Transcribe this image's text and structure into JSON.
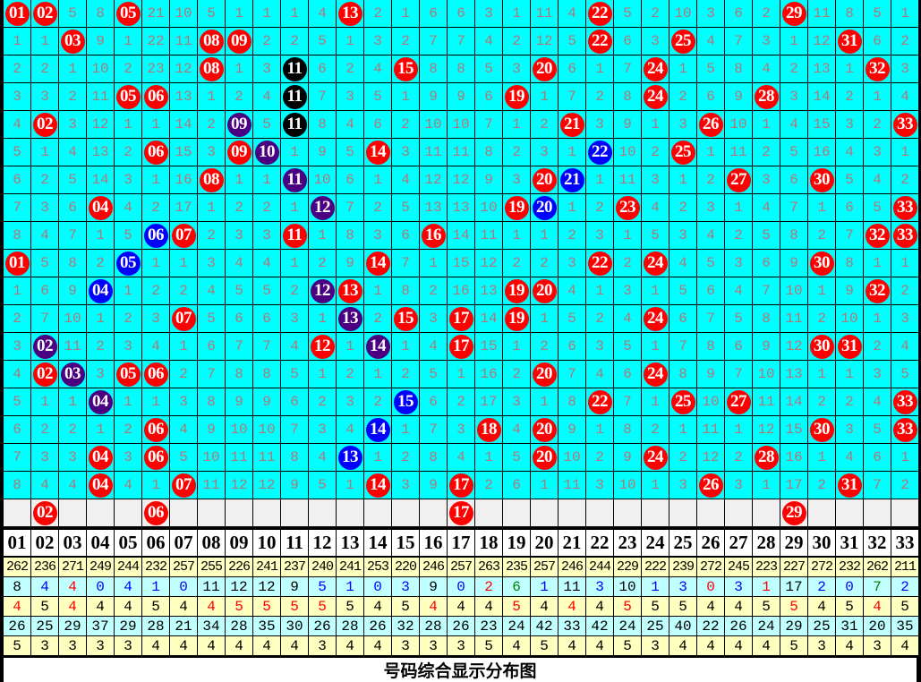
{
  "title": "号码综合显示分布图",
  "palette": {
    "r": "#ff0000",
    "b": "#0000ff",
    "p": "#4b0082",
    "k": "#000000",
    "g": "#008000"
  },
  "colors": {
    "cell_bg": "#00ffff",
    "cell_text": "#b07878",
    "blank_row_bg": "#f0f0f0",
    "stat_yellow": "#ffffc0",
    "stat_cyan": "#c0ffff"
  },
  "chart_data": {
    "type": "table",
    "columns": [
      "01",
      "02",
      "03",
      "04",
      "05",
      "06",
      "07",
      "08",
      "09",
      "10",
      "11",
      "12",
      "13",
      "14",
      "15",
      "16",
      "17",
      "18",
      "19",
      "20",
      "21",
      "22",
      "23",
      "24",
      "25",
      "26",
      "27",
      "28",
      "29",
      "30",
      "31",
      "32",
      "33"
    ],
    "rows": [
      {
        "cells": [
          "01",
          "02",
          "5",
          "8",
          "05",
          "21",
          "10",
          "5",
          "1",
          "1",
          "1",
          "4",
          "13",
          "2",
          "1",
          "6",
          "6",
          "3",
          "1",
          "11",
          "4",
          "22",
          "5",
          "2",
          "10",
          "3",
          "6",
          "2",
          "29",
          "11",
          "8",
          "5",
          "1"
        ],
        "balls": {
          "0": "r",
          "1": "r",
          "4": "r",
          "12": "r",
          "21": "r",
          "28": "r"
        }
      },
      {
        "cells": [
          "1",
          "1",
          "03",
          "9",
          "1",
          "22",
          "11",
          "08",
          "09",
          "2",
          "2",
          "5",
          "1",
          "3",
          "2",
          "7",
          "7",
          "4",
          "2",
          "12",
          "5",
          "22",
          "6",
          "3",
          "25",
          "4",
          "7",
          "3",
          "1",
          "12",
          "31",
          "6",
          "2"
        ],
        "balls": {
          "2": "r",
          "7": "r",
          "8": "r",
          "21": "r",
          "24": "r",
          "30": "r"
        }
      },
      {
        "cells": [
          "2",
          "2",
          "1",
          "10",
          "2",
          "23",
          "12",
          "08",
          "1",
          "3",
          "11",
          "6",
          "2",
          "4",
          "15",
          "8",
          "8",
          "5",
          "3",
          "20",
          "6",
          "1",
          "7",
          "24",
          "1",
          "5",
          "8",
          "4",
          "2",
          "13",
          "1",
          "32",
          "3"
        ],
        "balls": {
          "7": "r",
          "10": "k",
          "14": "r",
          "19": "r",
          "23": "r",
          "31": "r"
        }
      },
      {
        "cells": [
          "3",
          "3",
          "2",
          "11",
          "05",
          "06",
          "13",
          "1",
          "2",
          "4",
          "11",
          "7",
          "3",
          "5",
          "1",
          "9",
          "9",
          "6",
          "19",
          "1",
          "7",
          "2",
          "8",
          "24",
          "2",
          "6",
          "9",
          "28",
          "3",
          "14",
          "2",
          "1",
          "4"
        ],
        "balls": {
          "4": "r",
          "5": "r",
          "10": "k",
          "18": "r",
          "23": "r",
          "27": "r"
        }
      },
      {
        "cells": [
          "4",
          "02",
          "3",
          "12",
          "1",
          "1",
          "14",
          "2",
          "09",
          "5",
          "11",
          "8",
          "4",
          "6",
          "2",
          "10",
          "10",
          "7",
          "1",
          "2",
          "21",
          "3",
          "9",
          "1",
          "3",
          "26",
          "10",
          "1",
          "4",
          "15",
          "3",
          "2",
          "33"
        ],
        "balls": {
          "1": "r",
          "8": "p",
          "10": "k",
          "20": "r",
          "25": "r",
          "32": "r"
        }
      },
      {
        "cells": [
          "5",
          "1",
          "4",
          "13",
          "2",
          "06",
          "15",
          "3",
          "09",
          "10",
          "1",
          "9",
          "5",
          "14",
          "3",
          "11",
          "11",
          "8",
          "2",
          "3",
          "1",
          "22",
          "10",
          "2",
          "25",
          "1",
          "11",
          "2",
          "5",
          "16",
          "4",
          "3",
          "1"
        ],
        "balls": {
          "5": "r",
          "8": "r",
          "9": "p",
          "13": "r",
          "21": "b",
          "24": "r"
        }
      },
      {
        "cells": [
          "6",
          "2",
          "5",
          "14",
          "3",
          "1",
          "16",
          "08",
          "1",
          "1",
          "11",
          "10",
          "6",
          "1",
          "4",
          "12",
          "12",
          "9",
          "3",
          "20",
          "21",
          "1",
          "11",
          "3",
          "1",
          "2",
          "27",
          "3",
          "6",
          "30",
          "5",
          "4",
          "2"
        ],
        "balls": {
          "7": "r",
          "10": "p",
          "19": "r",
          "20": "b",
          "26": "r",
          "29": "r"
        }
      },
      {
        "cells": [
          "7",
          "3",
          "6",
          "04",
          "4",
          "2",
          "17",
          "1",
          "2",
          "2",
          "1",
          "12",
          "7",
          "2",
          "5",
          "13",
          "13",
          "10",
          "19",
          "20",
          "1",
          "2",
          "23",
          "4",
          "2",
          "3",
          "1",
          "4",
          "7",
          "1",
          "6",
          "5",
          "33"
        ],
        "balls": {
          "3": "r",
          "11": "p",
          "18": "r",
          "19": "b",
          "22": "r",
          "32": "r"
        }
      },
      {
        "cells": [
          "8",
          "4",
          "7",
          "1",
          "5",
          "06",
          "07",
          "2",
          "3",
          "3",
          "11",
          "1",
          "8",
          "3",
          "6",
          "16",
          "14",
          "11",
          "1",
          "1",
          "2",
          "3",
          "1",
          "5",
          "3",
          "4",
          "2",
          "5",
          "8",
          "2",
          "7",
          "32",
          "33"
        ],
        "balls": {
          "5": "b",
          "6": "r",
          "10": "r",
          "15": "r",
          "31": "r",
          "32": "r"
        }
      },
      {
        "cells": [
          "01",
          "5",
          "8",
          "2",
          "05",
          "1",
          "1",
          "3",
          "4",
          "4",
          "1",
          "2",
          "9",
          "14",
          "7",
          "1",
          "15",
          "12",
          "2",
          "2",
          "3",
          "22",
          "2",
          "24",
          "4",
          "5",
          "3",
          "6",
          "9",
          "30",
          "8",
          "1",
          "1"
        ],
        "balls": {
          "0": "r",
          "4": "b",
          "13": "r",
          "21": "r",
          "23": "r",
          "29": "r"
        }
      },
      {
        "cells": [
          "1",
          "6",
          "9",
          "04",
          "1",
          "2",
          "2",
          "4",
          "5",
          "5",
          "2",
          "12",
          "13",
          "1",
          "8",
          "2",
          "16",
          "13",
          "19",
          "20",
          "4",
          "1",
          "3",
          "1",
          "5",
          "6",
          "4",
          "7",
          "10",
          "1",
          "9",
          "32",
          "2"
        ],
        "balls": {
          "3": "b",
          "11": "p",
          "12": "r",
          "18": "r",
          "19": "r",
          "31": "r"
        }
      },
      {
        "cells": [
          "2",
          "7",
          "10",
          "1",
          "2",
          "3",
          "07",
          "5",
          "6",
          "6",
          "3",
          "1",
          "13",
          "2",
          "15",
          "3",
          "17",
          "14",
          "19",
          "1",
          "5",
          "2",
          "4",
          "24",
          "6",
          "7",
          "5",
          "8",
          "11",
          "2",
          "10",
          "1",
          "3"
        ],
        "balls": {
          "6": "r",
          "12": "p",
          "14": "r",
          "16": "r",
          "18": "r",
          "23": "r"
        }
      },
      {
        "cells": [
          "3",
          "02",
          "11",
          "2",
          "3",
          "4",
          "1",
          "6",
          "7",
          "7",
          "4",
          "12",
          "1",
          "14",
          "1",
          "4",
          "17",
          "15",
          "1",
          "2",
          "6",
          "3",
          "5",
          "1",
          "7",
          "8",
          "6",
          "9",
          "12",
          "30",
          "31",
          "2",
          "4"
        ],
        "balls": {
          "1": "p",
          "11": "r",
          "13": "p",
          "16": "r",
          "29": "r",
          "30": "r"
        }
      },
      {
        "cells": [
          "4",
          "02",
          "03",
          "3",
          "05",
          "06",
          "2",
          "7",
          "8",
          "8",
          "5",
          "1",
          "2",
          "1",
          "2",
          "5",
          "1",
          "16",
          "2",
          "20",
          "7",
          "4",
          "6",
          "24",
          "8",
          "9",
          "7",
          "10",
          "13",
          "1",
          "1",
          "3",
          "5"
        ],
        "balls": {
          "1": "r",
          "2": "p",
          "4": "r",
          "5": "r",
          "19": "r",
          "23": "r"
        }
      },
      {
        "cells": [
          "5",
          "1",
          "1",
          "04",
          "1",
          "1",
          "3",
          "8",
          "9",
          "9",
          "6",
          "2",
          "3",
          "2",
          "15",
          "6",
          "2",
          "17",
          "3",
          "1",
          "8",
          "22",
          "7",
          "1",
          "25",
          "10",
          "27",
          "11",
          "14",
          "2",
          "2",
          "4",
          "33"
        ],
        "balls": {
          "3": "p",
          "14": "b",
          "21": "r",
          "24": "r",
          "26": "r",
          "32": "r"
        }
      },
      {
        "cells": [
          "6",
          "2",
          "2",
          "1",
          "2",
          "06",
          "4",
          "9",
          "10",
          "10",
          "7",
          "3",
          "4",
          "14",
          "1",
          "7",
          "3",
          "18",
          "4",
          "20",
          "9",
          "1",
          "8",
          "2",
          "1",
          "11",
          "1",
          "12",
          "15",
          "30",
          "3",
          "5",
          "33"
        ],
        "balls": {
          "5": "r",
          "13": "b",
          "17": "r",
          "19": "r",
          "29": "r",
          "32": "r"
        }
      },
      {
        "cells": [
          "7",
          "3",
          "3",
          "04",
          "3",
          "06",
          "5",
          "10",
          "11",
          "11",
          "8",
          "4",
          "13",
          "1",
          "2",
          "8",
          "4",
          "1",
          "5",
          "20",
          "10",
          "2",
          "9",
          "24",
          "2",
          "12",
          "2",
          "28",
          "16",
          "1",
          "4",
          "6",
          "1"
        ],
        "balls": {
          "3": "r",
          "5": "r",
          "12": "b",
          "19": "r",
          "23": "r",
          "27": "r"
        }
      },
      {
        "cells": [
          "8",
          "4",
          "4",
          "04",
          "4",
          "1",
          "07",
          "11",
          "12",
          "12",
          "9",
          "5",
          "1",
          "14",
          "3",
          "9",
          "17",
          "2",
          "6",
          "1",
          "11",
          "3",
          "10",
          "1",
          "3",
          "26",
          "3",
          "1",
          "17",
          "2",
          "31",
          "7",
          "2"
        ],
        "balls": {
          "3": "r",
          "6": "r",
          "13": "r",
          "16": "r",
          "25": "r",
          "30": "r"
        }
      },
      {
        "blank": true,
        "cells": [
          "",
          "02",
          "",
          "",
          "",
          "06",
          "",
          "",
          "",
          "",
          "",
          "",
          "",
          "",
          "",
          "",
          "17",
          "",
          "",
          "",
          "",
          "",
          "",
          "",
          "",
          "",
          "",
          "",
          "29",
          "",
          "",
          "",
          ""
        ],
        "balls": {
          "1": "r",
          "5": "r",
          "16": "r",
          "28": "r"
        }
      }
    ],
    "stats": [
      {
        "bg": "#ffffc0",
        "values": [
          "262",
          "236",
          "271",
          "249",
          "244",
          "232",
          "257",
          "255",
          "226",
          "241",
          "237",
          "240",
          "241",
          "253",
          "220",
          "246",
          "257",
          "263",
          "235",
          "257",
          "246",
          "244",
          "229",
          "222",
          "239",
          "272",
          "245",
          "223",
          "227",
          "272",
          "232",
          "262",
          "211"
        ]
      },
      {
        "bg": "#c0ffff",
        "values": [
          "8",
          "4",
          "4",
          "0",
          "4",
          "1",
          "0",
          "11",
          "12",
          "12",
          "9",
          "5",
          "1",
          "0",
          "3",
          "9",
          "0",
          "2",
          "6",
          "1",
          "11",
          "3",
          "10",
          "1",
          "3",
          "0",
          "3",
          "1",
          "17",
          "2",
          "0",
          "7",
          "2"
        ],
        "colors": [
          "k",
          "b",
          "r",
          "b",
          "b",
          "b",
          "b",
          "k",
          "k",
          "k",
          "k",
          "b",
          "b",
          "b",
          "b",
          "k",
          "b",
          "r",
          "g",
          "b",
          "k",
          "b",
          "k",
          "b",
          "b",
          "r",
          "b",
          "r",
          "k",
          "b",
          "b",
          "g",
          "b"
        ]
      },
      {
        "bg": "#ffffc0",
        "values": [
          "4",
          "5",
          "4",
          "4",
          "4",
          "5",
          "4",
          "4",
          "5",
          "5",
          "5",
          "5",
          "5",
          "4",
          "5",
          "4",
          "4",
          "4",
          "5",
          "4",
          "4",
          "4",
          "5",
          "5",
          "5",
          "4",
          "4",
          "5",
          "5",
          "4",
          "5",
          "4",
          "5"
        ],
        "colors": [
          "r",
          "k",
          "r",
          "k",
          "k",
          "k",
          "k",
          "r",
          "r",
          "r",
          "r",
          "r",
          "k",
          "k",
          "k",
          "r",
          "k",
          "k",
          "r",
          "k",
          "r",
          "k",
          "r",
          "k",
          "k",
          "k",
          "k",
          "k",
          "r",
          "k",
          "k",
          "r",
          "k"
        ]
      },
      {
        "bg": "#c0ffff",
        "values": [
          "26",
          "25",
          "29",
          "37",
          "29",
          "28",
          "21",
          "34",
          "28",
          "35",
          "30",
          "26",
          "28",
          "26",
          "32",
          "28",
          "26",
          "23",
          "24",
          "42",
          "33",
          "42",
          "24",
          "25",
          "40",
          "22",
          "26",
          "24",
          "29",
          "25",
          "31",
          "20",
          "35"
        ]
      },
      {
        "bg": "#ffffc0",
        "values": [
          "5",
          "3",
          "3",
          "3",
          "3",
          "4",
          "4",
          "4",
          "4",
          "4",
          "4",
          "3",
          "4",
          "4",
          "3",
          "3",
          "3",
          "5",
          "4",
          "5",
          "4",
          "4",
          "5",
          "3",
          "4",
          "4",
          "4",
          "4",
          "5",
          "3",
          "4",
          "3",
          "4"
        ]
      }
    ]
  }
}
